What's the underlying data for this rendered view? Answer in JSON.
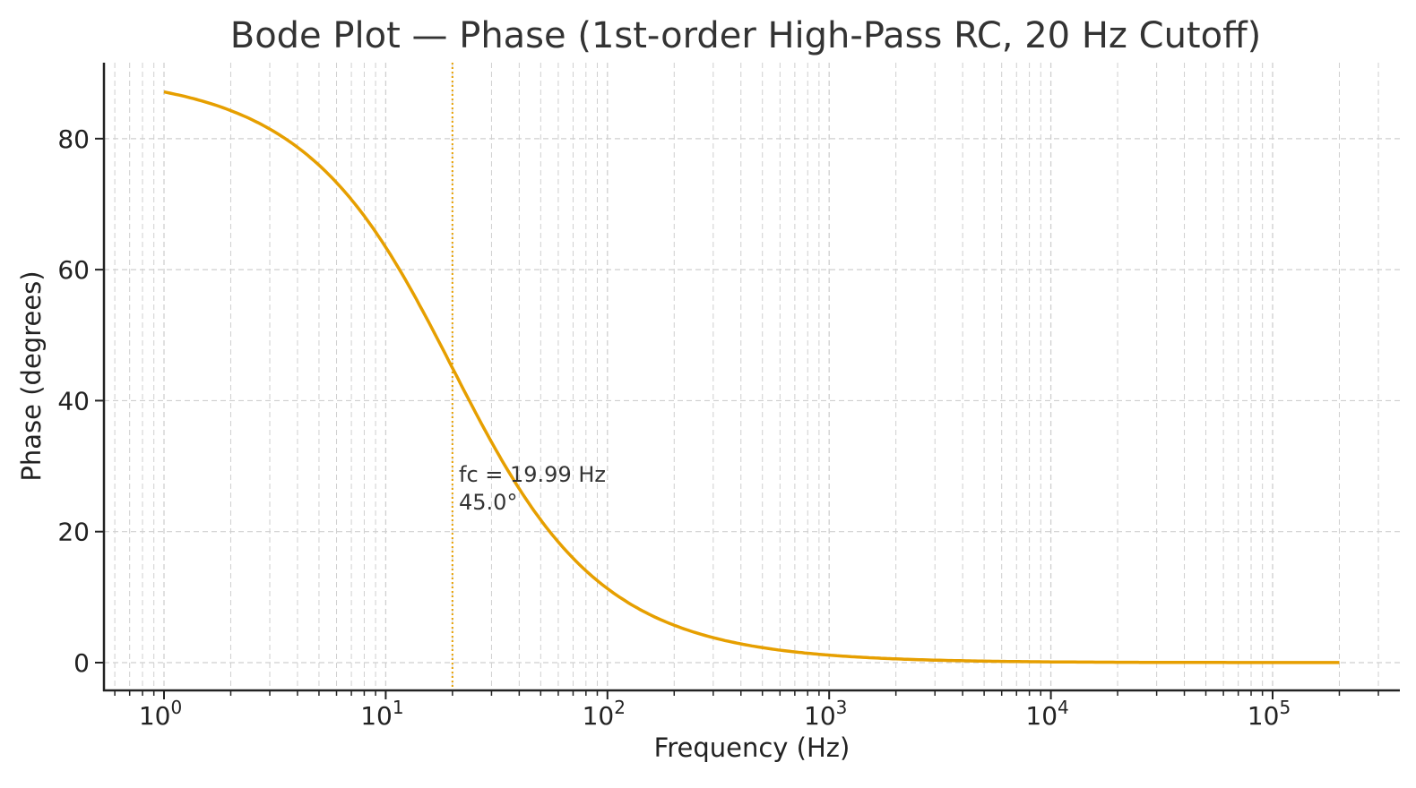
{
  "chart_data": {
    "type": "line",
    "title": "Bode Plot — Phase (1st-order High-Pass RC, 20 Hz Cutoff)",
    "xlabel": "Frequency (Hz)",
    "ylabel": "Phase (degrees)",
    "x_scale": "log",
    "xlim": [
      0.536,
      375000
    ],
    "ylim": [
      -4.24,
      91.6
    ],
    "grid": true,
    "x_ticks": [
      {
        "value": 1,
        "base": "10",
        "exp": "0"
      },
      {
        "value": 10,
        "base": "10",
        "exp": "1"
      },
      {
        "value": 100,
        "base": "10",
        "exp": "2"
      },
      {
        "value": 1000,
        "base": "10",
        "exp": "3"
      },
      {
        "value": 10000,
        "base": "10",
        "exp": "4"
      },
      {
        "value": 100000,
        "base": "10",
        "exp": "5"
      }
    ],
    "y_ticks": [
      "0",
      "20",
      "40",
      "60",
      "80"
    ],
    "series": [
      {
        "function": "phase = atan(fc / f) in degrees",
        "fc": 19.99,
        "x_range": [
          1,
          200000
        ],
        "color": "#E69F00"
      }
    ],
    "cutoff_line": {
      "x": 19.99,
      "color": "#E69F00",
      "style": "dotted"
    },
    "annotation": {
      "line1": "fc = 19.99 Hz",
      "line2": "45.0°",
      "x": 19.99,
      "y": 45.0
    }
  }
}
